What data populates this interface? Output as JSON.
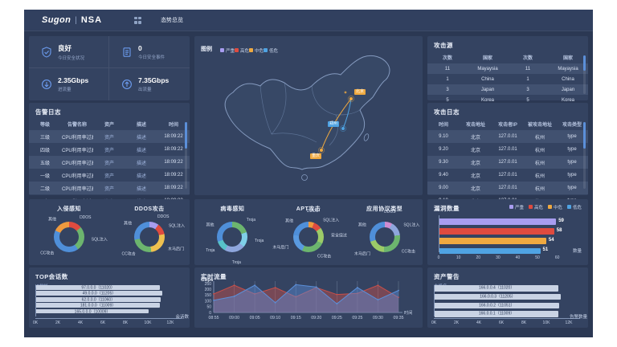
{
  "header": {
    "logo": "Sugon",
    "logo_divider": "|",
    "logo_sub": "NSA",
    "menu_icon": "grid-apps-icon",
    "nav_tab": "态势总览"
  },
  "status_cards": [
    {
      "icon": "shield-check-icon",
      "value": "良好",
      "label": "今日安全状况"
    },
    {
      "icon": "document-icon",
      "value": "0",
      "label": "今日安全事件"
    },
    {
      "icon": "arrow-down-circle-icon",
      "value": "2.35Gbps",
      "label": "进流量"
    },
    {
      "icon": "arrow-up-circle-icon",
      "value": "7.35Gbps",
      "label": "出流量"
    }
  ],
  "alarm_log": {
    "title": "告警日志",
    "headers": [
      "等级",
      "告警名称",
      "资产",
      "描述",
      "时间"
    ],
    "rows": [
      [
        "三级",
        "CPU利用率过高",
        "资产",
        "描述",
        "18:09:22"
      ],
      [
        "四级",
        "CPU利用率过高",
        "资产",
        "描述",
        "18:09:22"
      ],
      [
        "五级",
        "CPU利用率过高",
        "资产",
        "描述",
        "18:09:22"
      ],
      [
        "一级",
        "CPU利用率过高",
        "资产",
        "描述",
        "18:09:22"
      ],
      [
        "二级",
        "CPU利用率过高",
        "资产",
        "描述",
        "18:09:22"
      ],
      [
        "二级",
        "CPU利用率过高",
        "资产",
        "描述",
        "18:09:22"
      ]
    ]
  },
  "attack_source": {
    "title": "攻击源",
    "headers": [
      "次数",
      "国家",
      "次数",
      "国家"
    ],
    "rows": [
      [
        "11",
        "Mayaysia",
        "11",
        "Mayaysia"
      ],
      [
        "1",
        "China",
        "1",
        "China"
      ],
      [
        "3",
        "Japan",
        "3",
        "Japan"
      ],
      [
        "5",
        "Korea",
        "5",
        "Korea"
      ]
    ]
  },
  "attack_log": {
    "title": "攻击日志",
    "headers": [
      "时间",
      "攻击地址",
      "攻击者IP",
      "被攻击地址",
      "攻击类型"
    ],
    "rows": [
      [
        "9.10",
        "北京",
        "127.0.01",
        "杭州",
        "type"
      ],
      [
        "9.20",
        "北京",
        "127.0.01",
        "杭州",
        "type"
      ],
      [
        "9.30",
        "北京",
        "127.0.01",
        "杭州",
        "type"
      ],
      [
        "9.40",
        "北京",
        "127.0.01",
        "杭州",
        "type"
      ],
      [
        "9.00",
        "北京",
        "127.0.01",
        "杭州",
        "type"
      ],
      [
        "9.10",
        "北京",
        "127.0.01",
        "杭州",
        "type"
      ]
    ]
  },
  "map": {
    "legend_title": "图例",
    "legend": [
      {
        "label": "严重",
        "color": "#a89df0"
      },
      {
        "label": "高危",
        "color": "#df4b3f"
      },
      {
        "label": "中危",
        "color": "#efa940"
      },
      {
        "label": "低危",
        "color": "#4fa3e3"
      }
    ],
    "points": [
      {
        "label": "北京",
        "color": "#efa940"
      },
      {
        "label": "郑州",
        "color": "#4fa3e3"
      },
      {
        "label": "重庆",
        "color": "#efa940"
      }
    ]
  },
  "chart_data": [
    {
      "id": "intrusion",
      "type": "pie",
      "title": "入侵感知",
      "segments": [
        {
          "label": "DDOS",
          "value": 14,
          "color": "#df4b3f"
        },
        {
          "label": "SQL注入",
          "value": 26,
          "color": "#6cb56e"
        },
        {
          "label": "CC攻击",
          "value": 42,
          "color": "#4f8fd9"
        },
        {
          "label": "其他",
          "value": 18,
          "color": "#ef9a3e"
        }
      ]
    },
    {
      "id": "ddos",
      "type": "pie",
      "title": "DDOS攻击",
      "segments": [
        {
          "label": "DDOS",
          "value": 10,
          "color": "#a89df0"
        },
        {
          "label": "SQL注入",
          "value": 12,
          "color": "#df4b3f"
        },
        {
          "label": "木马后门",
          "value": 26,
          "color": "#eec04f"
        },
        {
          "label": "CC攻击",
          "value": 24,
          "color": "#6cb56e"
        },
        {
          "label": "其他",
          "value": 28,
          "color": "#4f8fd9"
        }
      ]
    },
    {
      "id": "virus",
      "type": "pie",
      "title": "病毒感知",
      "segments": [
        {
          "label": "Troja",
          "value": 20,
          "color": "#6cb56e"
        },
        {
          "label": "Troja",
          "value": 16,
          "color": "#7fd0e8"
        },
        {
          "label": "Troja",
          "value": 22,
          "color": "#8ea6dd"
        },
        {
          "label": "Troja",
          "value": 12,
          "color": "#57c2c9"
        },
        {
          "label": "其他",
          "value": 30,
          "color": "#4f8fd9"
        }
      ]
    },
    {
      "id": "apt",
      "type": "pie",
      "title": "APT攻击",
      "segments": [
        {
          "label": "DDOS",
          "value": 6,
          "color": "#ef9a3e"
        },
        {
          "label": "SQL注入",
          "value": 9,
          "color": "#df4b3f"
        },
        {
          "label": "安全绕过",
          "value": 17,
          "color": "#9ccb68"
        },
        {
          "label": "CC攻击",
          "value": 25,
          "color": "#6cb56e"
        },
        {
          "label": "木马后门",
          "value": 20,
          "color": "#5a9ae0"
        },
        {
          "label": "其他",
          "value": 23,
          "color": "#4f8fd9"
        }
      ]
    },
    {
      "id": "protocol",
      "type": "pie",
      "title": "应用协议类型",
      "segments": [
        {
          "label": "DDOS",
          "value": 8,
          "color": "#d08cd0"
        },
        {
          "label": "SQL注入",
          "value": 15,
          "color": "#8ea6dd"
        },
        {
          "label": "CC攻击",
          "value": 28,
          "color": "#6cb56e"
        },
        {
          "label": "木马后门",
          "value": 19,
          "color": "#9ccb68"
        },
        {
          "label": "其他",
          "value": 30,
          "color": "#4f8fd9"
        }
      ]
    },
    {
      "id": "vuln",
      "type": "bar",
      "orientation": "horizontal",
      "title": "漏洞数量",
      "categories": [
        "严重",
        "高危",
        "中危",
        "低危"
      ],
      "values": [
        59,
        58,
        54,
        51
      ],
      "colors": [
        "#a89df0",
        "#df4b3f",
        "#efa940",
        "#4fa3e3"
      ],
      "legend": [
        "严重",
        "高危",
        "中危",
        "低危"
      ],
      "xticks": [
        0,
        10,
        20,
        30,
        40,
        50,
        60
      ],
      "xmax": 65,
      "xlabel": "数量"
    },
    {
      "id": "sessions",
      "type": "bar",
      "orientation": "horizontal",
      "title": "TOP会话数",
      "ylabel": "IP地址",
      "xlabel": "会话数",
      "bar_color": "#c9d3e4",
      "bars": [
        {
          "label": "97.0.0.0（11020）",
          "value": 11020
        },
        {
          "label": "49.0.0.0（11205）",
          "value": 11205
        },
        {
          "label": "62.0.0.0（11060）",
          "value": 11060
        },
        {
          "label": "181.0.0.0（11009）",
          "value": 11009
        },
        {
          "label": "165.0.0.0（10009）",
          "value": 10009
        }
      ],
      "xticks": [
        "0K",
        "2K",
        "4K",
        "6K",
        "8K",
        "10K",
        "12K"
      ],
      "xmax": 12000
    },
    {
      "id": "traffic",
      "type": "area",
      "title": "实时流量",
      "ylabel": "Gbps",
      "xlabel": "时间",
      "x": [
        "08:55",
        "09:00",
        "09:05",
        "09:10",
        "09:15",
        "09:20",
        "09:25",
        "09:25",
        "09:30",
        "09:35"
      ],
      "yticks": [
        0,
        50,
        100,
        150,
        200,
        250
      ],
      "ymax": 250,
      "series": [
        {
          "name": "series-red",
          "color": "#c9504a",
          "values": [
            160,
            235,
            160,
            215,
            135,
            215,
            155,
            165,
            235,
            130
          ]
        },
        {
          "name": "series-blue",
          "color": "#5b8fd9",
          "values": [
            105,
            140,
            235,
            85,
            240,
            220,
            75,
            215,
            110,
            190
          ]
        }
      ]
    },
    {
      "id": "assets",
      "type": "bar",
      "orientation": "horizontal",
      "title": "资产警告",
      "ylabel": "主机名",
      "xlabel": "告警数量",
      "bar_color": "#c9d3e4",
      "bars": [
        {
          "label": "166.0.0.4（11020）",
          "value": 11020
        },
        {
          "label": "166.0.0.3（11205）",
          "value": 11205
        },
        {
          "label": "166.0.0.2（11051）",
          "value": 11051
        },
        {
          "label": "166.0.0.1（11009）",
          "value": 11009
        }
      ],
      "xticks": [
        "0K",
        "2K",
        "4K",
        "6K",
        "8K",
        "10K",
        "12K"
      ],
      "xmax": 12000
    }
  ]
}
